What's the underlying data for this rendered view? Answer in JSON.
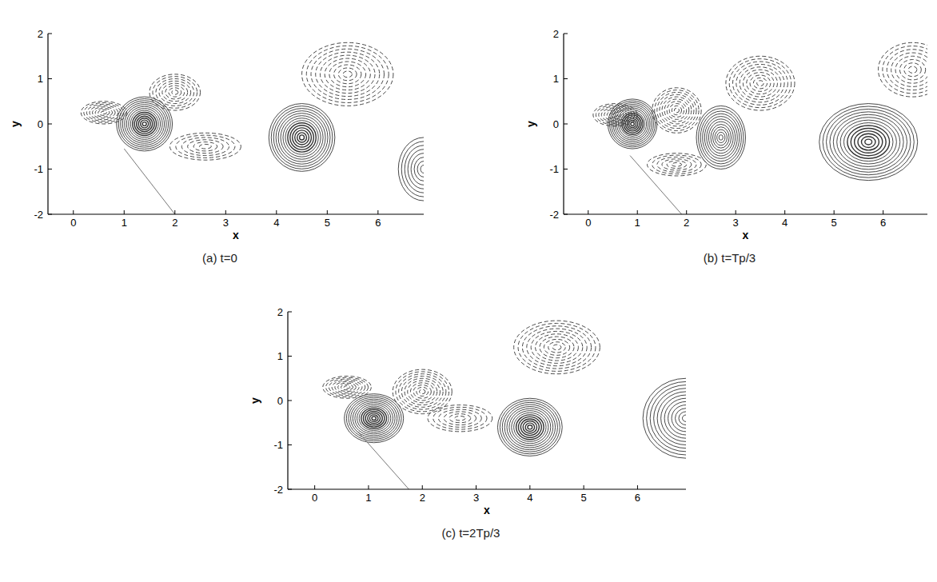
{
  "chart_data": [
    {
      "type": "contour",
      "title": "(a) t=0",
      "x_label": "x",
      "y_label": "y",
      "xlim": [
        -0.5,
        6.9
      ],
      "ylim": [
        -2,
        2
      ],
      "xticks": [
        0,
        1,
        2,
        3,
        4,
        5,
        6
      ],
      "yticks": [
        -2,
        -1,
        0,
        1,
        2
      ],
      "color": "#333333",
      "plate_line": {
        "x": [
          1.0,
          2.0
        ],
        "y": [
          -0.55,
          -2
        ]
      },
      "vortices": [
        {
          "x": 1.4,
          "y": 0.0,
          "rx": 0.55,
          "ry": 0.6,
          "sign": 1,
          "levels": 14
        },
        {
          "x": 0.6,
          "y": 0.25,
          "rx": 0.45,
          "ry": 0.25,
          "sign": -1,
          "levels": 8
        },
        {
          "x": 2.0,
          "y": 0.7,
          "rx": 0.5,
          "ry": 0.4,
          "sign": -1,
          "levels": 8
        },
        {
          "x": 2.6,
          "y": -0.5,
          "rx": 0.7,
          "ry": 0.3,
          "sign": -1,
          "levels": 6
        },
        {
          "x": 4.5,
          "y": -0.3,
          "rx": 0.65,
          "ry": 0.75,
          "sign": 1,
          "levels": 14
        },
        {
          "x": 5.4,
          "y": 1.1,
          "rx": 0.9,
          "ry": 0.7,
          "sign": -1,
          "levels": 10
        },
        {
          "x": 6.9,
          "y": -1.0,
          "rx": 0.5,
          "ry": 0.7,
          "sign": 1,
          "levels": 8
        }
      ]
    },
    {
      "type": "contour",
      "title": "(b) t=Tp/3",
      "x_label": "x",
      "y_label": "y",
      "xlim": [
        -0.5,
        6.9
      ],
      "ylim": [
        -2,
        2
      ],
      "xticks": [
        0,
        1,
        2,
        3,
        4,
        5,
        6
      ],
      "yticks": [
        -2,
        -1,
        0,
        1,
        2
      ],
      "color": "#333333",
      "plate_line": {
        "x": [
          0.85,
          1.9
        ],
        "y": [
          -0.7,
          -2
        ]
      },
      "vortices": [
        {
          "x": 0.9,
          "y": 0.0,
          "rx": 0.5,
          "ry": 0.55,
          "sign": 1,
          "levels": 14
        },
        {
          "x": 0.55,
          "y": 0.2,
          "rx": 0.45,
          "ry": 0.25,
          "sign": -1,
          "levels": 8
        },
        {
          "x": 1.8,
          "y": 0.3,
          "rx": 0.5,
          "ry": 0.5,
          "sign": -1,
          "levels": 10
        },
        {
          "x": 2.7,
          "y": -0.3,
          "rx": 0.5,
          "ry": 0.7,
          "sign": 1,
          "levels": 12
        },
        {
          "x": 3.5,
          "y": 0.9,
          "rx": 0.7,
          "ry": 0.6,
          "sign": -1,
          "levels": 10
        },
        {
          "x": 1.8,
          "y": -0.9,
          "rx": 0.6,
          "ry": 0.25,
          "sign": -1,
          "levels": 6
        },
        {
          "x": 5.7,
          "y": -0.4,
          "rx": 1.0,
          "ry": 0.85,
          "sign": 1,
          "levels": 14
        },
        {
          "x": 6.6,
          "y": 1.2,
          "rx": 0.7,
          "ry": 0.6,
          "sign": -1,
          "levels": 8
        }
      ]
    },
    {
      "type": "contour",
      "title": "(c) t=2Tp/3",
      "x_label": "x",
      "y_label": "y",
      "xlim": [
        -0.5,
        6.9
      ],
      "ylim": [
        -2,
        2
      ],
      "xticks": [
        0,
        1,
        2,
        3,
        4,
        5,
        6
      ],
      "yticks": [
        -2,
        -1,
        0,
        1,
        2
      ],
      "color": "#333333",
      "plate_line": {
        "x": [
          0.8,
          1.75
        ],
        "y": [
          -0.7,
          -2
        ]
      },
      "vortices": [
        {
          "x": 1.1,
          "y": -0.4,
          "rx": 0.55,
          "ry": 0.55,
          "sign": 1,
          "levels": 14
        },
        {
          "x": 0.6,
          "y": 0.3,
          "rx": 0.45,
          "ry": 0.25,
          "sign": -1,
          "levels": 8
        },
        {
          "x": 2.0,
          "y": 0.2,
          "rx": 0.55,
          "ry": 0.5,
          "sign": -1,
          "levels": 10
        },
        {
          "x": 2.7,
          "y": -0.4,
          "rx": 0.6,
          "ry": 0.3,
          "sign": -1,
          "levels": 6
        },
        {
          "x": 4.0,
          "y": -0.6,
          "rx": 0.6,
          "ry": 0.65,
          "sign": 1,
          "levels": 14
        },
        {
          "x": 4.5,
          "y": 1.2,
          "rx": 0.8,
          "ry": 0.6,
          "sign": -1,
          "levels": 10
        },
        {
          "x": 6.9,
          "y": -0.4,
          "rx": 0.8,
          "ry": 0.9,
          "sign": 1,
          "levels": 12
        }
      ]
    }
  ]
}
